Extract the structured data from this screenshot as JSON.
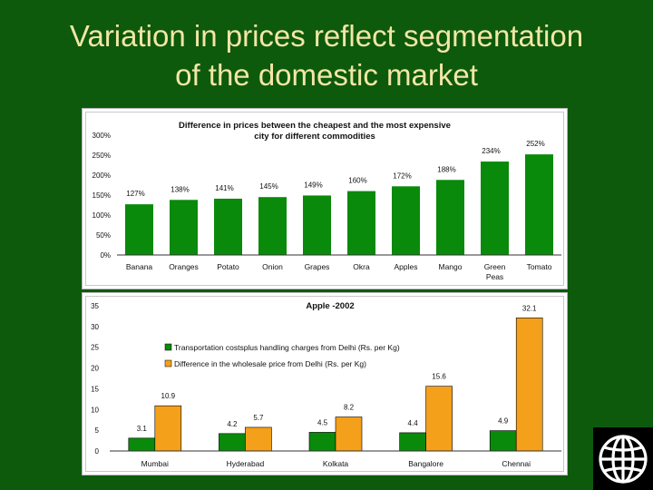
{
  "slide": {
    "title_line1": "Variation in prices reflect segmentation",
    "title_line2": "of the domestic market"
  },
  "colors": {
    "background": "#0d5a0d",
    "title": "#f3e6a6",
    "bar_green": "#0a8a0a",
    "bar_orange": "#f5a01a"
  },
  "logo": {
    "icon": "globe-icon"
  },
  "chart_data": [
    {
      "type": "bar",
      "title_line1": "Difference in prices between the cheapest and the most expensive",
      "title_line2": "city for different commodities",
      "categories": [
        "Banana",
        "Oranges",
        "Potato",
        "Onion",
        "Grapes",
        "Okra",
        "Apples",
        "Mango",
        "Green Peas",
        "Tomato"
      ],
      "values": [
        127,
        138,
        141,
        145,
        149,
        160,
        172,
        188,
        234,
        252
      ],
      "value_labels": [
        "127%",
        "138%",
        "141%",
        "145%",
        "149%",
        "160%",
        "172%",
        "188%",
        "234%",
        "252%"
      ],
      "yticks": [
        "0%",
        "50%",
        "100%",
        "150%",
        "200%",
        "250%",
        "300%"
      ],
      "ylim": [
        0,
        300
      ],
      "grid": false
    },
    {
      "type": "bar",
      "title": "Apple -2002",
      "categories": [
        "Mumbai",
        "Hyderabad",
        "Kolkata",
        "Bangalore",
        "Chennai"
      ],
      "series": [
        {
          "name": "Transportation costsplus handling charges from Delhi (Rs. per Kg)",
          "values": [
            3.1,
            4.2,
            4.5,
            4.4,
            4.9
          ]
        },
        {
          "name": "Difference in the wholesale price from Delhi (Rs. per Kg)",
          "values": [
            10.9,
            5.7,
            8.2,
            15.6,
            32.1
          ]
        }
      ],
      "yticks": [
        "0",
        "5",
        "10",
        "15",
        "20",
        "25",
        "30",
        "35"
      ],
      "ylim": [
        0,
        35
      ],
      "legend": "left",
      "grid": false
    }
  ]
}
